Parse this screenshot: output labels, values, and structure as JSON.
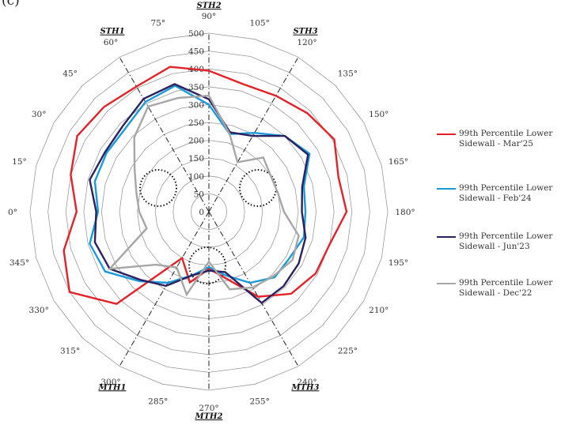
{
  "panel_label": "(c)",
  "chart_data": {
    "type": "radar",
    "radial_ticks": [
      0,
      50,
      100,
      150,
      200,
      250,
      300,
      350,
      400,
      450,
      500
    ],
    "rlim": [
      0,
      500
    ],
    "grid": true,
    "angle_labels": [
      "0°",
      "15°",
      "30°",
      "45°",
      "60°",
      "75°",
      "90°",
      "105°",
      "120°",
      "135°",
      "150°",
      "165°",
      "180°",
      "195°",
      "210°",
      "225°",
      "240°",
      "255°",
      "270°",
      "285°",
      "300°",
      "315°",
      "330°",
      "345°"
    ],
    "angle_values": [
      0,
      15,
      30,
      45,
      60,
      75,
      90,
      105,
      120,
      135,
      150,
      165,
      180,
      195,
      210,
      225,
      240,
      255,
      270,
      285,
      300,
      315,
      330,
      345
    ],
    "axes": [
      {
        "name": "STH1",
        "angle": 60
      },
      {
        "name": "STH2",
        "angle": 90
      },
      {
        "name": "STH3",
        "angle": 120
      },
      {
        "name": "MTH1",
        "angle": 300
      },
      {
        "name": "MTH2",
        "angle": 270
      },
      {
        "name": "MTH3",
        "angle": 240
      }
    ],
    "legend_position": "right",
    "colors": {
      "mar25": "#e32128",
      "feb24": "#1a9ad9",
      "jun23": "#2b2160",
      "dec22": "#a6a6a6",
      "grid": "#9a9a9a"
    },
    "series": [
      {
        "name": "99th Percentile Lower Sidewall - Mar'25",
        "color": "#e32128",
        "values": [
          370,
          400,
          425,
          415,
          405,
          420,
          395,
          370,
          375,
          390,
          405,
          375,
          385,
          350,
          345,
          325,
          275,
          195,
          160,
          205,
          150,
          365,
          450,
          420
        ]
      },
      {
        "name": "99th Percentile Lower Sidewall - Feb'24",
        "color": "#1a9ad9",
        "values": [
          310,
          330,
          330,
          330,
          355,
          365,
          300,
          225,
          255,
          300,
          325,
          275,
          270,
          275,
          260,
          260,
          230,
          185,
          155,
          185,
          230,
          275,
          335,
          345
        ]
      },
      {
        "name": "99th Percentile Lower Sidewall - Jun'23",
        "color": "#2b2160",
        "values": [
          315,
          345,
          335,
          340,
          365,
          370,
          315,
          230,
          245,
          300,
          320,
          270,
          260,
          280,
          290,
          295,
          295,
          175,
          165,
          185,
          240,
          270,
          320,
          330
        ]
      },
      {
        "name": "99th Percentile Lower Sidewall - Dec'22",
        "color": "#a6a6a6",
        "values": [
          195,
          210,
          240,
          295,
          340,
          330,
          325,
          225,
          160,
          215,
          200,
          200,
          210,
          260,
          270,
          255,
          245,
          225,
          140,
          240,
          180,
          210,
          320,
          180
        ]
      }
    ],
    "dotted_circles": 3
  }
}
